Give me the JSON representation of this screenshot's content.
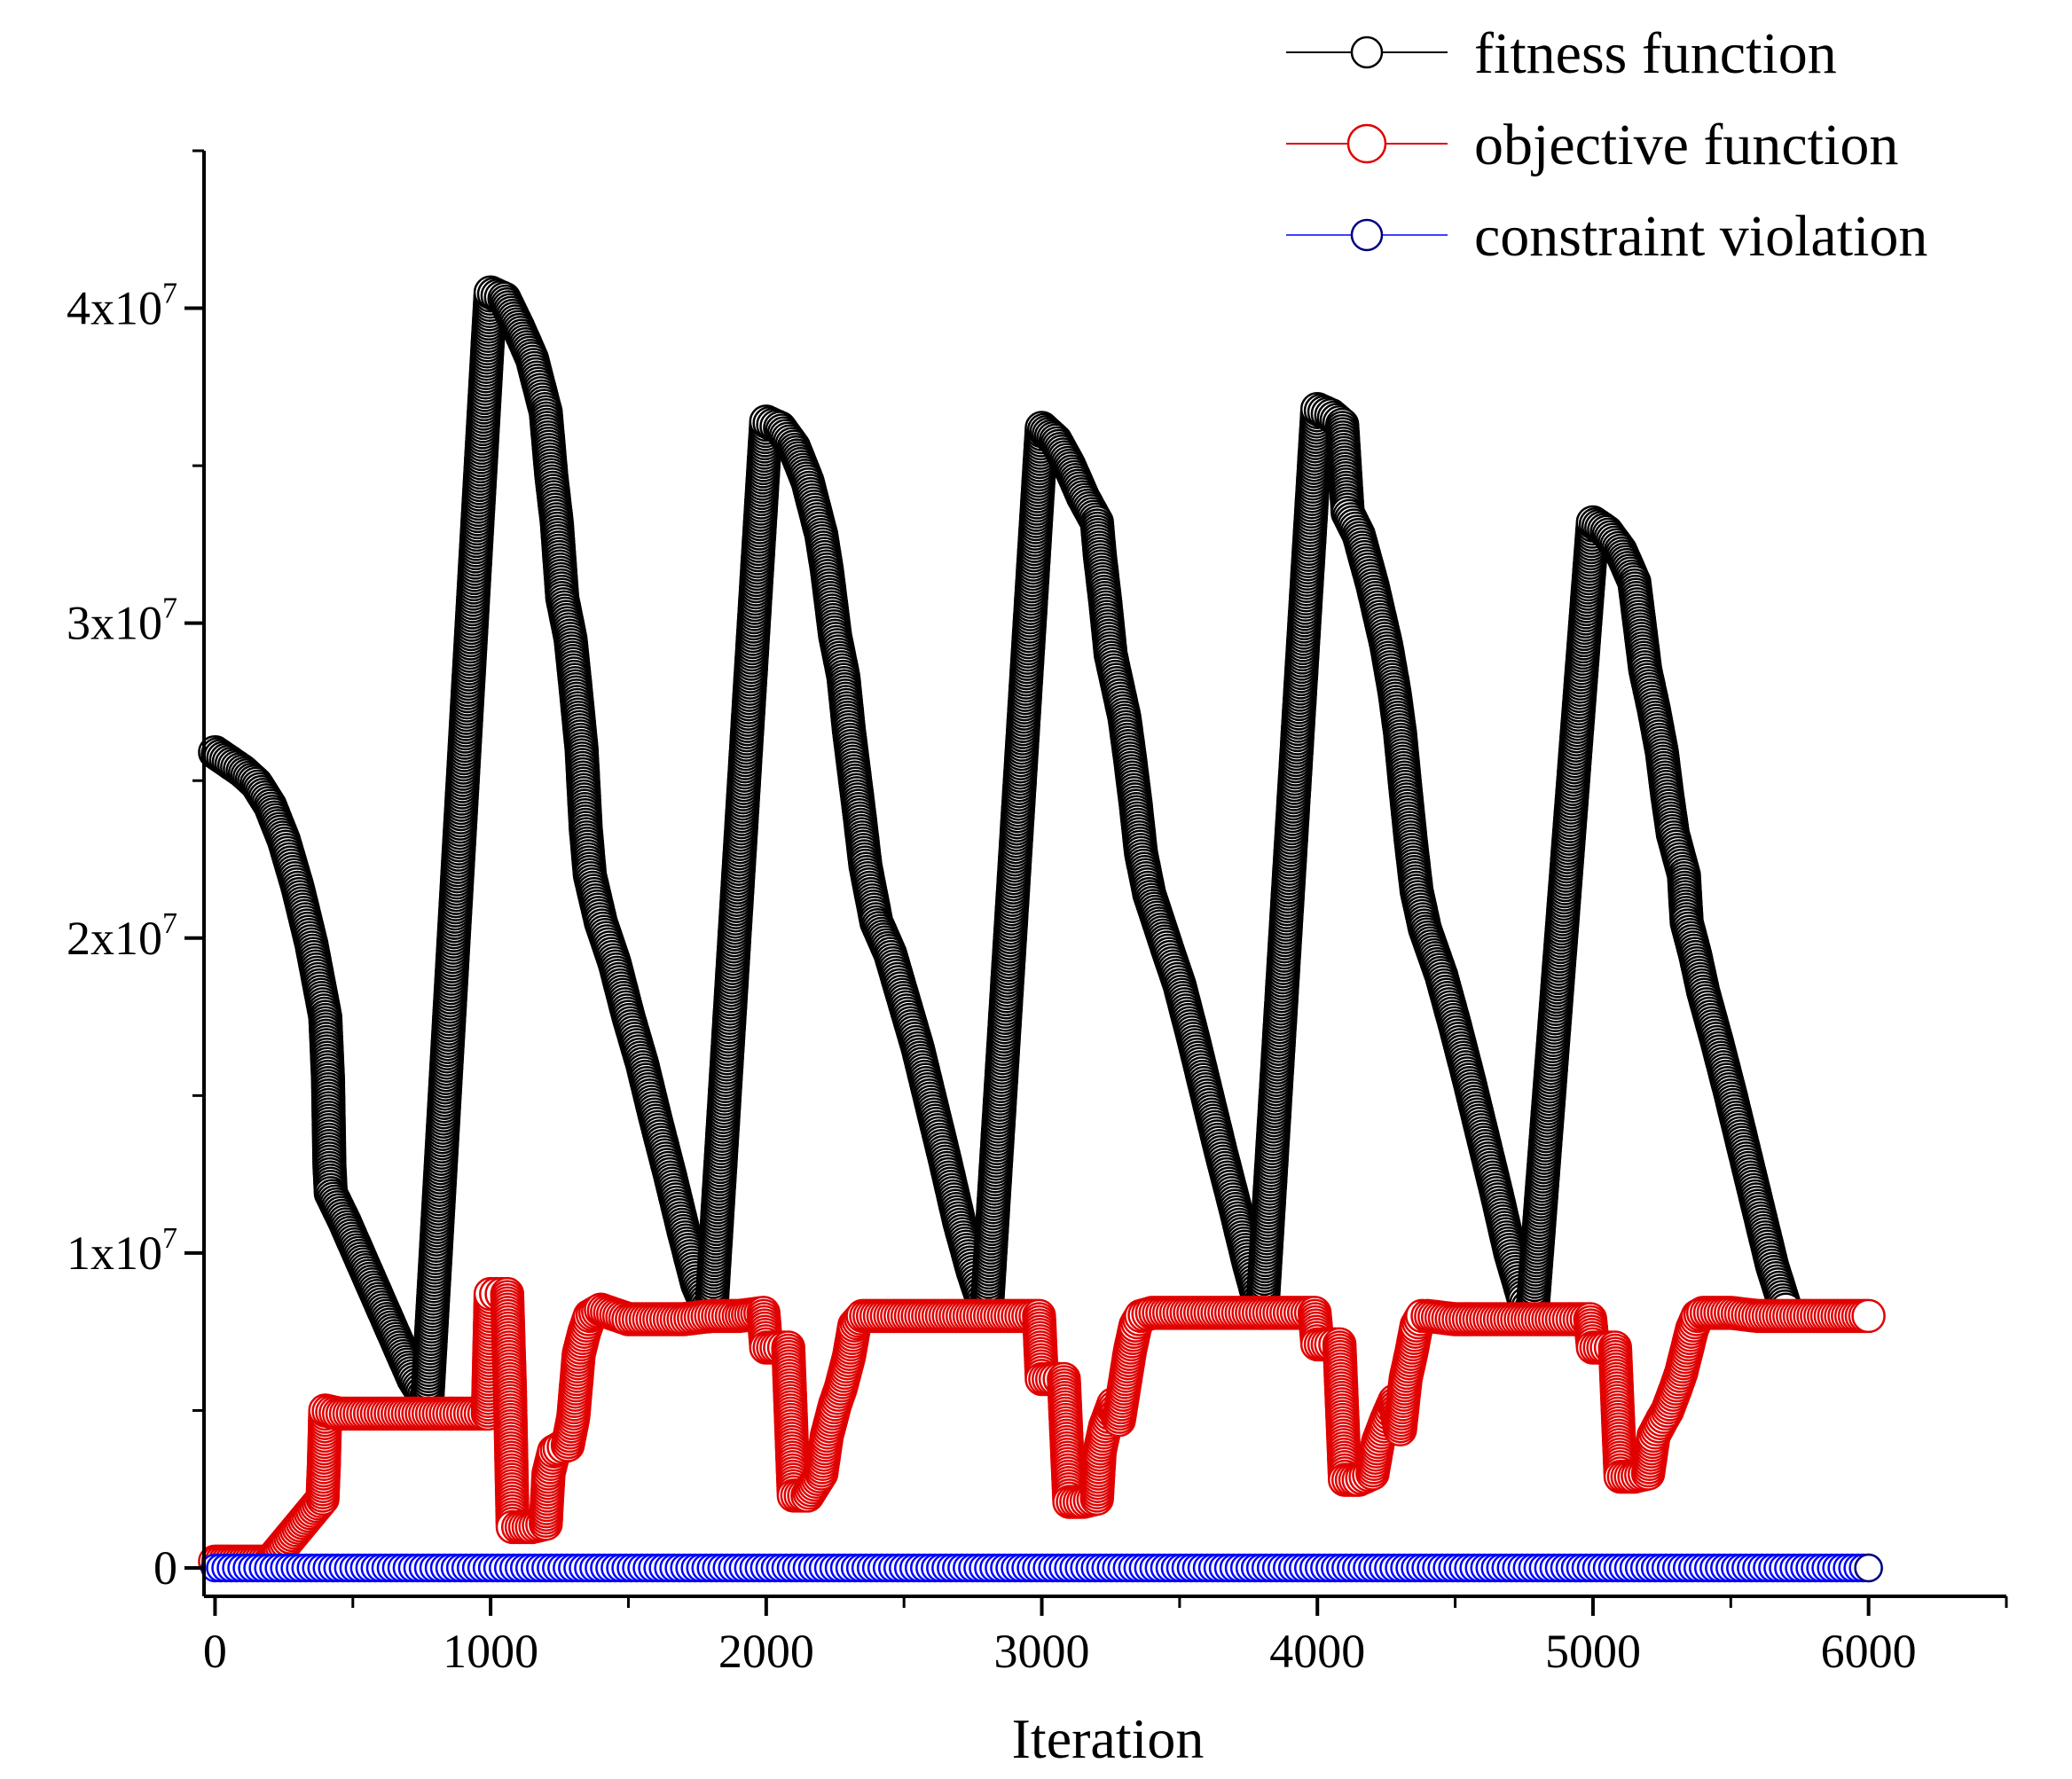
{
  "chart_data": {
    "type": "scatter",
    "title": "",
    "xlabel": "Iteration",
    "ylabel": "",
    "xlim": [
      -40,
      6500
    ],
    "ylim": [
      -900000,
      45000000
    ],
    "grid": false,
    "legend_position": "top-right",
    "x_ticks": [
      {
        "value": 0,
        "label": "0"
      },
      {
        "value": 1000,
        "label": "1000"
      },
      {
        "value": 2000,
        "label": "2000"
      },
      {
        "value": 3000,
        "label": "3000"
      },
      {
        "value": 4000,
        "label": "4000"
      },
      {
        "value": 5000,
        "label": "5000"
      },
      {
        "value": 6000,
        "label": "6000"
      }
    ],
    "y_ticks": [
      {
        "value": 0,
        "base": "0",
        "exp": ""
      },
      {
        "value": 10000000,
        "base": "1x10",
        "exp": "7"
      },
      {
        "value": 20000000,
        "base": "2x10",
        "exp": "7"
      },
      {
        "value": 30000000,
        "base": "3x10",
        "exp": "7"
      },
      {
        "value": 40000000,
        "base": "4x10",
        "exp": "7"
      }
    ],
    "series": [
      {
        "name": "fitness function",
        "color": "#000000",
        "marker_fill": "#ffffff",
        "points": [
          [
            0,
            25900000
          ],
          [
            50,
            25600000
          ],
          [
            100,
            25300000
          ],
          [
            150,
            24900000
          ],
          [
            200,
            24200000
          ],
          [
            250,
            23100000
          ],
          [
            300,
            21600000
          ],
          [
            350,
            19800000
          ],
          [
            400,
            17500000
          ],
          [
            410,
            15500000
          ],
          [
            415,
            12800000
          ],
          [
            420,
            11900000
          ],
          [
            470,
            11000000
          ],
          [
            520,
            10000000
          ],
          [
            570,
            9000000
          ],
          [
            620,
            8000000
          ],
          [
            670,
            7000000
          ],
          [
            720,
            6000000
          ],
          [
            770,
            5300000
          ],
          [
            1000,
            40500000
          ],
          [
            1050,
            40300000
          ],
          [
            1100,
            39400000
          ],
          [
            1150,
            38400000
          ],
          [
            1200,
            36700000
          ],
          [
            1220,
            34700000
          ],
          [
            1240,
            33200000
          ],
          [
            1260,
            30800000
          ],
          [
            1290,
            29500000
          ],
          [
            1310,
            27800000
          ],
          [
            1330,
            26000000
          ],
          [
            1345,
            23500000
          ],
          [
            1360,
            22000000
          ],
          [
            1400,
            20500000
          ],
          [
            1450,
            19200000
          ],
          [
            1500,
            17500000
          ],
          [
            1550,
            16000000
          ],
          [
            1600,
            14200000
          ],
          [
            1650,
            12500000
          ],
          [
            1700,
            10700000
          ],
          [
            1750,
            9000000
          ],
          [
            1800,
            8000000
          ],
          [
            2000,
            36400000
          ],
          [
            2050,
            36200000
          ],
          [
            2100,
            35600000
          ],
          [
            2150,
            34500000
          ],
          [
            2200,
            32800000
          ],
          [
            2220,
            31700000
          ],
          [
            2250,
            29600000
          ],
          [
            2280,
            28300000
          ],
          [
            2300,
            26600000
          ],
          [
            2320,
            25200000
          ],
          [
            2340,
            23800000
          ],
          [
            2360,
            22300000
          ],
          [
            2400,
            20500000
          ],
          [
            2450,
            19500000
          ],
          [
            2500,
            18000000
          ],
          [
            2550,
            16500000
          ],
          [
            2600,
            14700000
          ],
          [
            2650,
            12900000
          ],
          [
            2700,
            11000000
          ],
          [
            2750,
            9400000
          ],
          [
            2800,
            8100000
          ],
          [
            3000,
            36200000
          ],
          [
            3050,
            35800000
          ],
          [
            3100,
            35000000
          ],
          [
            3150,
            34000000
          ],
          [
            3200,
            33200000
          ],
          [
            3210,
            32200000
          ],
          [
            3230,
            30700000
          ],
          [
            3250,
            29000000
          ],
          [
            3270,
            28200000
          ],
          [
            3300,
            27000000
          ],
          [
            3320,
            25700000
          ],
          [
            3340,
            24300000
          ],
          [
            3360,
            22700000
          ],
          [
            3390,
            21400000
          ],
          [
            3450,
            19800000
          ],
          [
            3500,
            18500000
          ],
          [
            3550,
            16800000
          ],
          [
            3600,
            15000000
          ],
          [
            3650,
            13200000
          ],
          [
            3700,
            11500000
          ],
          [
            3750,
            9700000
          ],
          [
            3800,
            8100000
          ],
          [
            4000,
            36800000
          ],
          [
            4050,
            36600000
          ],
          [
            4090,
            36300000
          ],
          [
            4110,
            33500000
          ],
          [
            4150,
            32800000
          ],
          [
            4200,
            31200000
          ],
          [
            4250,
            29300000
          ],
          [
            4280,
            27800000
          ],
          [
            4300,
            26500000
          ],
          [
            4320,
            24700000
          ],
          [
            4340,
            23000000
          ],
          [
            4360,
            21500000
          ],
          [
            4390,
            20300000
          ],
          [
            4450,
            18800000
          ],
          [
            4500,
            17200000
          ],
          [
            4550,
            15500000
          ],
          [
            4600,
            13700000
          ],
          [
            4650,
            11900000
          ],
          [
            4700,
            10000000
          ],
          [
            4750,
            8500000
          ],
          [
            4780,
            8100000
          ],
          [
            5000,
            33200000
          ],
          [
            5050,
            32900000
          ],
          [
            5100,
            32300000
          ],
          [
            5150,
            31300000
          ],
          [
            5170,
            29900000
          ],
          [
            5190,
            28500000
          ],
          [
            5220,
            27300000
          ],
          [
            5250,
            25900000
          ],
          [
            5270,
            24500000
          ],
          [
            5290,
            23300000
          ],
          [
            5330,
            22000000
          ],
          [
            5340,
            20500000
          ],
          [
            5370,
            19500000
          ],
          [
            5400,
            18300000
          ],
          [
            5450,
            16700000
          ],
          [
            5500,
            15000000
          ],
          [
            5550,
            13200000
          ],
          [
            5600,
            11400000
          ],
          [
            5650,
            9600000
          ],
          [
            5700,
            8200000
          ]
        ]
      },
      {
        "name": "objective function",
        "color": "#e00000",
        "marker_fill": "#ffffff",
        "points": [
          [
            0,
            200000
          ],
          [
            200,
            200000
          ],
          [
            390,
            2200000
          ],
          [
            395,
            3300000
          ],
          [
            400,
            5000000
          ],
          [
            450,
            4900000
          ],
          [
            500,
            4900000
          ],
          [
            600,
            4900000
          ],
          [
            700,
            4900000
          ],
          [
            800,
            4900000
          ],
          [
            900,
            4900000
          ],
          [
            990,
            4900000
          ],
          [
            1000,
            8700000
          ],
          [
            1020,
            8700000
          ],
          [
            1040,
            8700000
          ],
          [
            1060,
            8700000
          ],
          [
            1070,
            5700000
          ],
          [
            1080,
            1300000
          ],
          [
            1100,
            1300000
          ],
          [
            1150,
            1300000
          ],
          [
            1200,
            1400000
          ],
          [
            1210,
            3000000
          ],
          [
            1230,
            3700000
          ],
          [
            1250,
            3800000
          ],
          [
            1280,
            3900000
          ],
          [
            1300,
            4800000
          ],
          [
            1310,
            5800000
          ],
          [
            1320,
            6800000
          ],
          [
            1340,
            7500000
          ],
          [
            1360,
            8000000
          ],
          [
            1400,
            8200000
          ],
          [
            1500,
            7900000
          ],
          [
            1600,
            7900000
          ],
          [
            1700,
            7900000
          ],
          [
            1800,
            8000000
          ],
          [
            1900,
            8000000
          ],
          [
            1990,
            8100000
          ],
          [
            2000,
            7000000
          ],
          [
            2050,
            7000000
          ],
          [
            2080,
            7000000
          ],
          [
            2100,
            2300000
          ],
          [
            2150,
            2300000
          ],
          [
            2200,
            3000000
          ],
          [
            2220,
            4200000
          ],
          [
            2250,
            5200000
          ],
          [
            2270,
            5700000
          ],
          [
            2300,
            6700000
          ],
          [
            2320,
            7700000
          ],
          [
            2350,
            8000000
          ],
          [
            2400,
            8000000
          ],
          [
            2500,
            8000000
          ],
          [
            2600,
            8000000
          ],
          [
            2700,
            8000000
          ],
          [
            2800,
            8000000
          ],
          [
            2900,
            8000000
          ],
          [
            2990,
            8000000
          ],
          [
            3000,
            6000000
          ],
          [
            3050,
            6000000
          ],
          [
            3080,
            6000000
          ],
          [
            3100,
            2100000
          ],
          [
            3150,
            2100000
          ],
          [
            3200,
            2200000
          ],
          [
            3210,
            3700000
          ],
          [
            3230,
            4500000
          ],
          [
            3260,
            5200000
          ],
          [
            3280,
            4700000
          ],
          [
            3300,
            5800000
          ],
          [
            3320,
            6900000
          ],
          [
            3340,
            7700000
          ],
          [
            3360,
            8000000
          ],
          [
            3400,
            8100000
          ],
          [
            3500,
            8100000
          ],
          [
            3600,
            8100000
          ],
          [
            3700,
            8100000
          ],
          [
            3800,
            8100000
          ],
          [
            3900,
            8100000
          ],
          [
            3990,
            8100000
          ],
          [
            4000,
            7100000
          ],
          [
            4050,
            7100000
          ],
          [
            4080,
            7100000
          ],
          [
            4100,
            2800000
          ],
          [
            4150,
            2800000
          ],
          [
            4200,
            3000000
          ],
          [
            4220,
            4000000
          ],
          [
            4250,
            4700000
          ],
          [
            4280,
            5300000
          ],
          [
            4300,
            4400000
          ],
          [
            4320,
            6000000
          ],
          [
            4340,
            6800000
          ],
          [
            4360,
            7700000
          ],
          [
            4380,
            8000000
          ],
          [
            4400,
            8000000
          ],
          [
            4500,
            7900000
          ],
          [
            4600,
            7900000
          ],
          [
            4700,
            7900000
          ],
          [
            4800,
            7900000
          ],
          [
            4900,
            7900000
          ],
          [
            4990,
            7900000
          ],
          [
            5000,
            7000000
          ],
          [
            5050,
            7000000
          ],
          [
            5080,
            7000000
          ],
          [
            5100,
            2900000
          ],
          [
            5150,
            2900000
          ],
          [
            5200,
            3000000
          ],
          [
            5220,
            4200000
          ],
          [
            5250,
            4700000
          ],
          [
            5270,
            5000000
          ],
          [
            5300,
            5700000
          ],
          [
            5320,
            6200000
          ],
          [
            5340,
            6900000
          ],
          [
            5360,
            7600000
          ],
          [
            5380,
            8000000
          ],
          [
            5400,
            8100000
          ],
          [
            5500,
            8100000
          ],
          [
            5600,
            8000000
          ],
          [
            5700,
            8000000
          ],
          [
            5800,
            8000000
          ],
          [
            5900,
            8000000
          ],
          [
            6000,
            8000000
          ]
        ]
      },
      {
        "name": "constraint violation",
        "color": "#0000ff",
        "marker_fill": "#ffffff",
        "points": [
          [
            0,
            0
          ],
          [
            6000,
            0
          ]
        ]
      }
    ]
  }
}
